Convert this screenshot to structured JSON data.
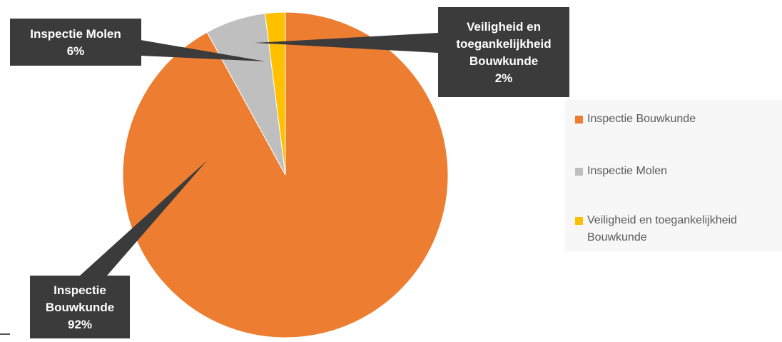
{
  "chart_data": {
    "type": "pie",
    "title": "",
    "slices": [
      {
        "label": "Inspectie Bouwkunde",
        "value": 92,
        "color": "#ED7D31",
        "callout": [
          "Inspectie",
          "Bouwkunde",
          "92%"
        ]
      },
      {
        "label": "Inspectie Molen",
        "value": 6,
        "color": "#BFBFBF",
        "callout": [
          "Inspectie Molen",
          "6%"
        ]
      },
      {
        "label": "Veiligheid en toegankelijkheid Bouwkunde",
        "value": 2,
        "color": "#FFC000",
        "callout": [
          "Veiligheid en",
          "toegankelijkheid",
          "Bouwkunde",
          "2%"
        ]
      }
    ],
    "legend_position": "right"
  },
  "colors": {
    "callout_bg": "#3b3b3b",
    "slice_border": "#ffffff"
  }
}
